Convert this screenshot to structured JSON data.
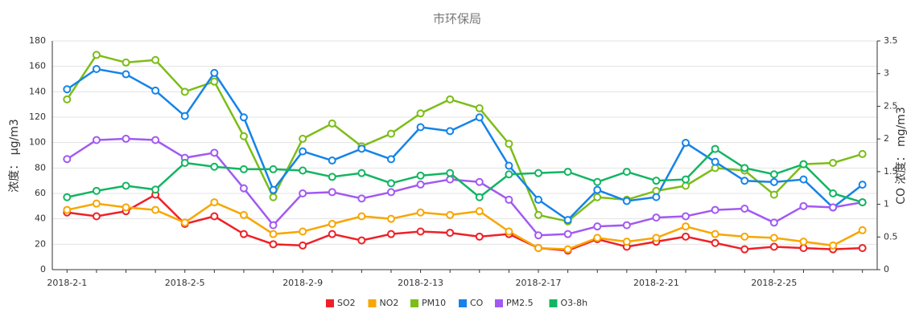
{
  "chart_data": {
    "type": "line",
    "title": "市环保局",
    "y_label": "浓度： μg/m3",
    "y2_label": "CO 浓度： mg/m3",
    "categories": [
      "2018-2-1",
      null,
      null,
      null,
      "2018-2-5",
      null,
      null,
      null,
      "2018-2-9",
      null,
      null,
      null,
      "2018-2-13",
      null,
      null,
      null,
      "2018-2-17",
      null,
      null,
      null,
      "2018-2-21",
      null,
      null,
      null,
      "2018-2-25",
      null,
      null,
      null
    ],
    "ylim": [
      0,
      180
    ],
    "yticks": [
      0,
      20,
      40,
      60,
      80,
      100,
      120,
      140,
      160,
      180
    ],
    "y2lim": [
      0,
      3.5
    ],
    "y2ticks": [
      0,
      0.5,
      1,
      1.5,
      2,
      2.5,
      3,
      3.5
    ],
    "grid": true,
    "legend": "bottom",
    "series": [
      {
        "name": "SO2",
        "color": "#ee2127",
        "values": [
          45,
          42,
          46,
          59,
          36,
          42,
          28,
          20,
          19,
          28,
          23,
          28,
          30,
          29,
          26,
          28,
          17,
          15,
          24,
          18,
          22,
          26,
          21,
          16,
          18,
          17,
          16,
          17
        ]
      },
      {
        "name": "NO2",
        "color": "#f8a600",
        "values": [
          47,
          52,
          49,
          47,
          37,
          53,
          43,
          28,
          30,
          36,
          42,
          40,
          45,
          43,
          46,
          30,
          17,
          16,
          25,
          22,
          25,
          34,
          28,
          26,
          25,
          22,
          19,
          31
        ]
      },
      {
        "name": "PM10",
        "color": "#7cbd17",
        "values": [
          134,
          169,
          163,
          165,
          140,
          148,
          105,
          57,
          103,
          115,
          97,
          107,
          123,
          134,
          127,
          99,
          43,
          38,
          57,
          55,
          62,
          66,
          80,
          78,
          59,
          83,
          84,
          91
        ]
      },
      {
        "name": "CO",
        "color": "#1583e8",
        "axis": "y2",
        "values": [
          2.76,
          3.07,
          2.99,
          2.74,
          2.35,
          3.01,
          2.33,
          1.22,
          1.81,
          1.67,
          1.85,
          1.69,
          2.18,
          2.12,
          2.33,
          1.59,
          1.07,
          0.76,
          1.22,
          1.05,
          1.11,
          1.94,
          1.65,
          1.36,
          1.34,
          1.38,
          0.95,
          1.3
        ]
      },
      {
        "name": "PM2.5",
        "color": "#a259f2",
        "values": [
          87,
          102,
          103,
          102,
          88,
          92,
          64,
          35,
          60,
          61,
          56,
          61,
          67,
          71,
          69,
          55,
          27,
          28,
          34,
          35,
          41,
          42,
          47,
          48,
          37,
          50,
          49,
          53
        ]
      },
      {
        "name": "O3-8h",
        "color": "#12b562",
        "values": [
          57,
          62,
          66,
          63,
          84,
          81,
          79,
          79,
          78,
          73,
          76,
          68,
          74,
          76,
          57,
          75,
          76,
          77,
          69,
          77,
          70,
          71,
          95,
          80,
          75,
          83,
          60,
          53
        ]
      }
    ]
  }
}
